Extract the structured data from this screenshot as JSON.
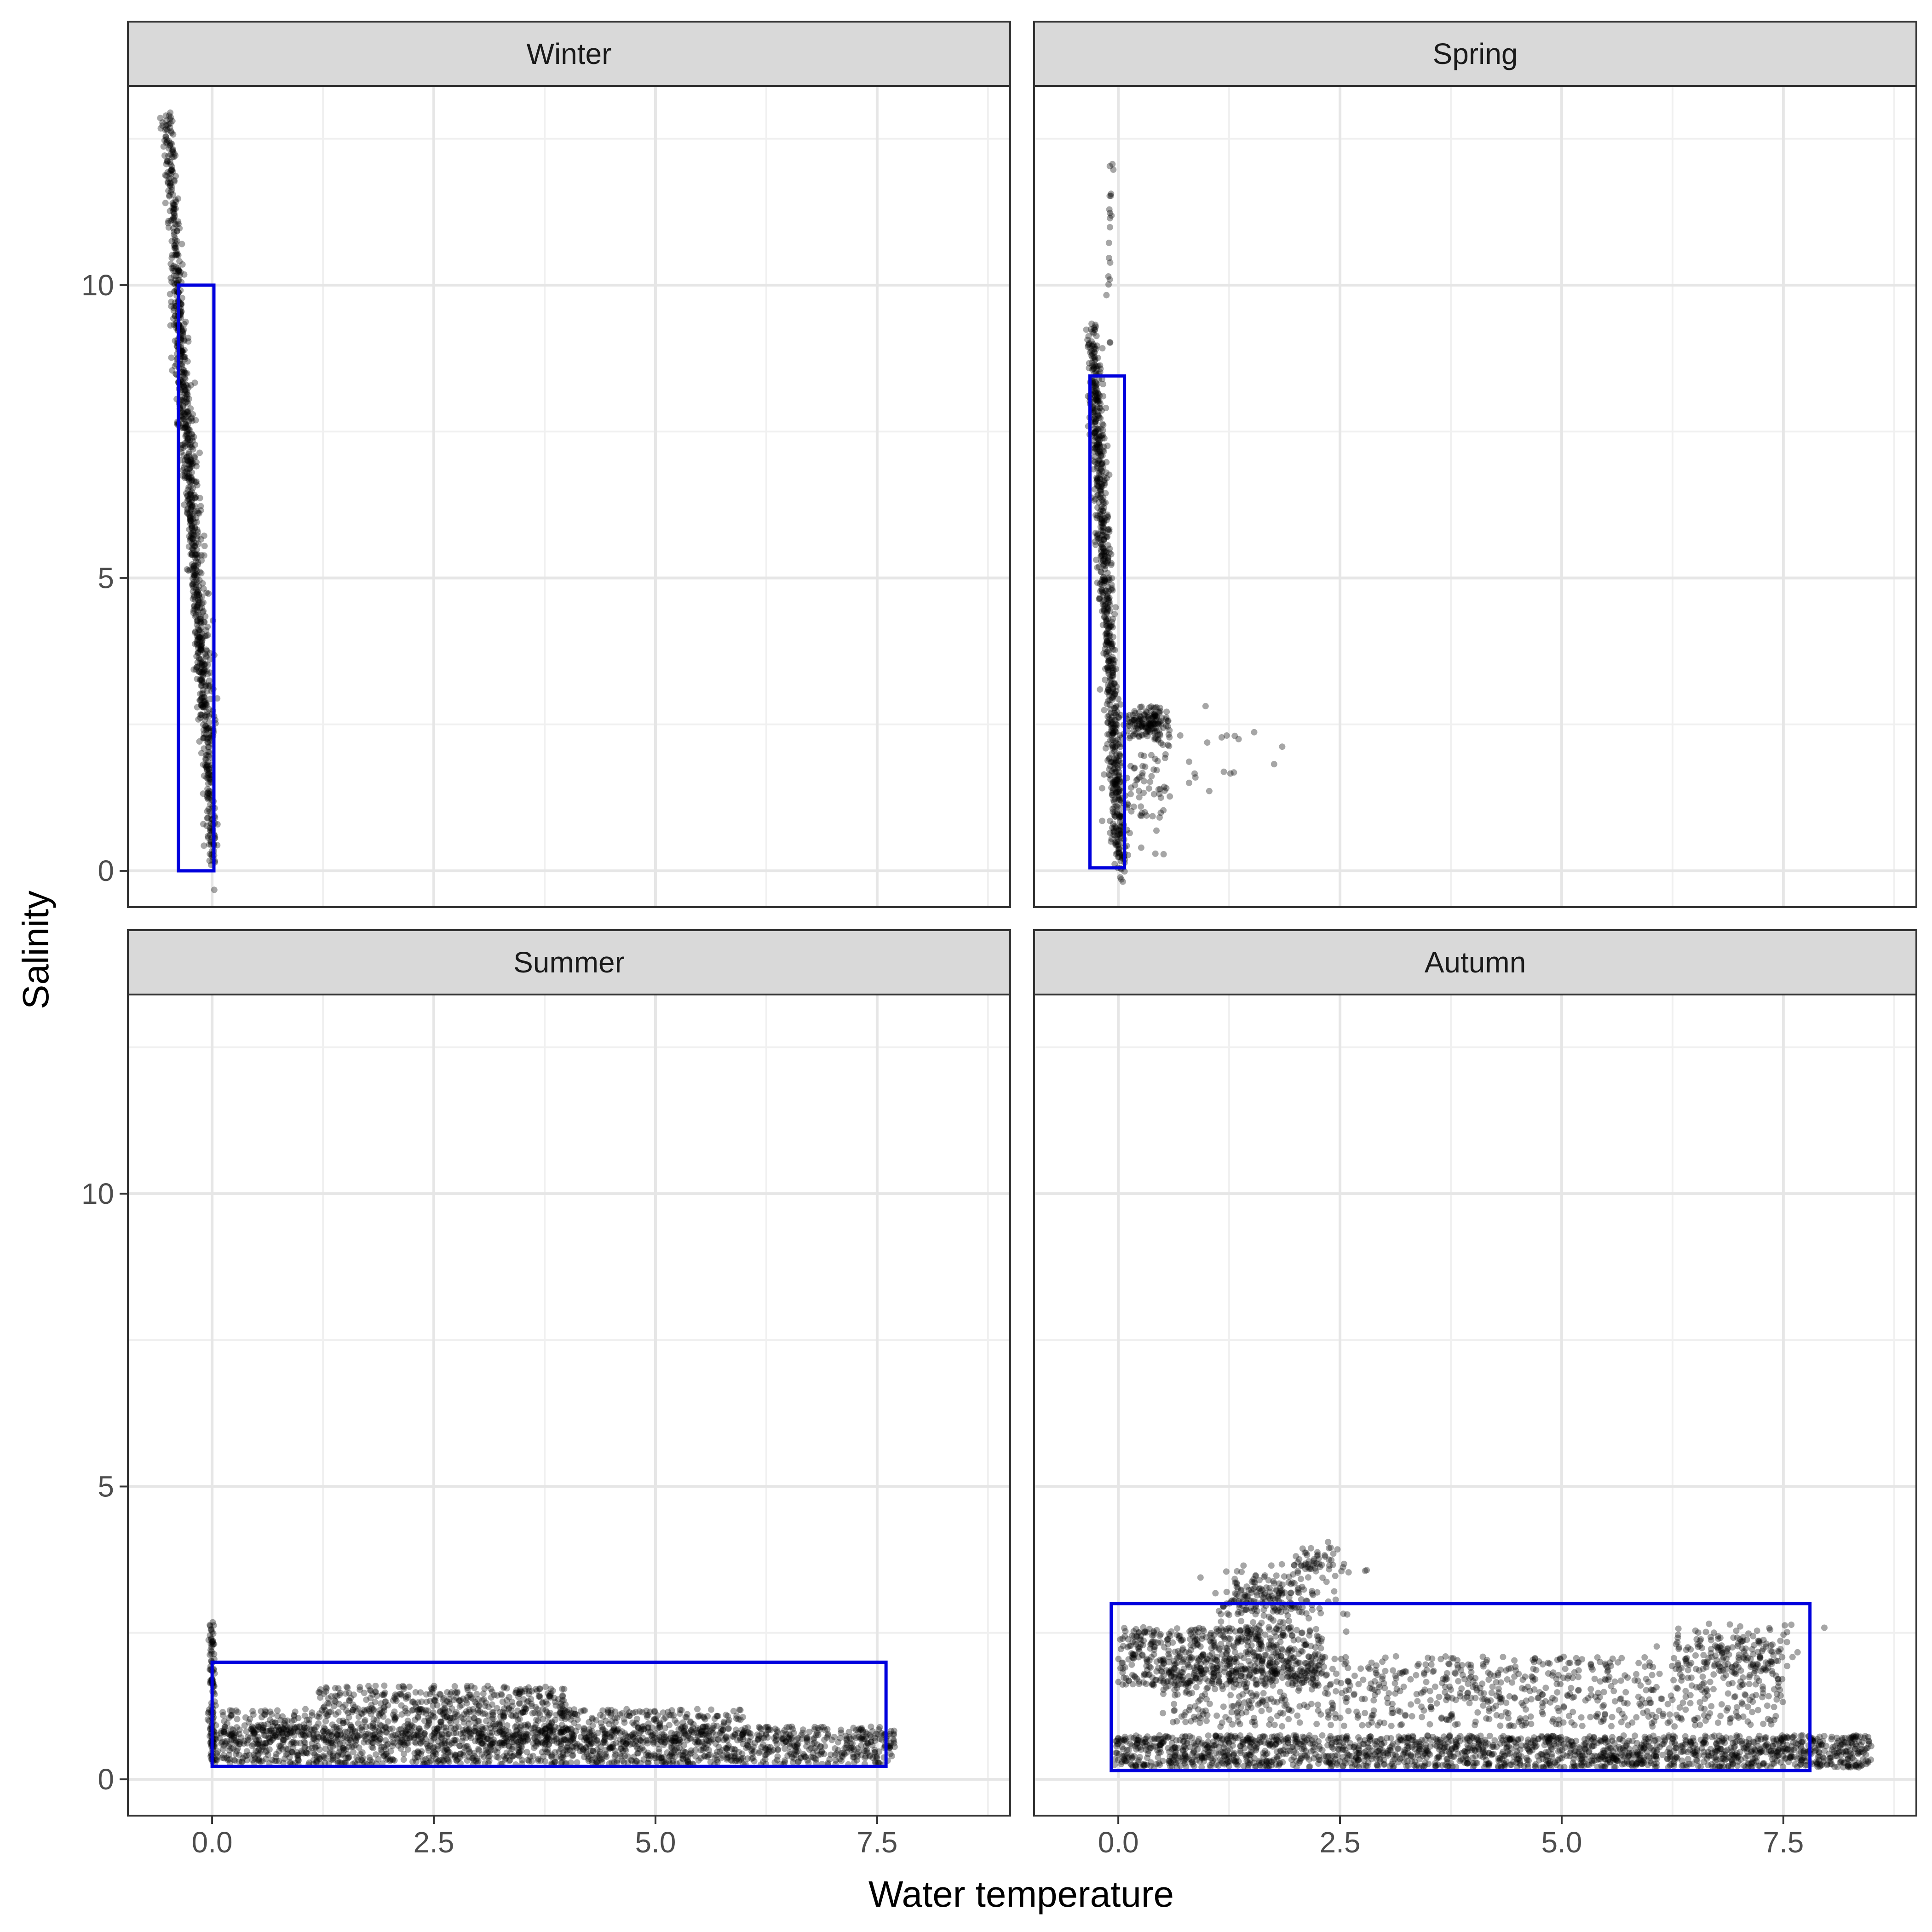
{
  "chart_data": {
    "type": "scatter",
    "xlabel": "Water temperature",
    "ylabel": "Salinity",
    "xlim": [
      -0.95,
      9.0
    ],
    "ylim": [
      -0.62,
      13.4
    ],
    "x_ticks": [
      0.0,
      2.5,
      5.0,
      7.5
    ],
    "x_tick_labels": [
      "0.0",
      "2.5",
      "5.0",
      "7.5"
    ],
    "y_ticks": [
      0,
      5,
      10
    ],
    "y_tick_labels": [
      "0",
      "5",
      "10"
    ],
    "grid": true,
    "legend": "none",
    "point_color": "#000000",
    "box_color": "#0000dd",
    "panels": [
      {
        "strip": "Winter",
        "box": {
          "xmin": -0.38,
          "xmax": 0.02,
          "ymin": 0.0,
          "ymax": 10.0
        },
        "clusters": [
          {
            "kind": "line",
            "x0": -0.5,
            "y0": 12.8,
            "x1": 0.02,
            "y1": 0.05,
            "spread_x": 0.03,
            "spread_y": 0.15,
            "n": 700
          },
          {
            "kind": "line",
            "x0": -0.42,
            "y0": 10.0,
            "x1": 0.0,
            "y1": 2.0,
            "spread_x": 0.05,
            "spread_y": 0.3,
            "n": 300
          }
        ]
      },
      {
        "strip": "Spring",
        "box": {
          "xmin": -0.32,
          "xmax": 0.07,
          "ymin": 0.05,
          "ymax": 8.45
        },
        "clusters": [
          {
            "kind": "line",
            "x0": -0.3,
            "y0": 9.3,
            "x1": 0.03,
            "y1": 0.05,
            "spread_x": 0.04,
            "spread_y": 0.15,
            "n": 800
          },
          {
            "kind": "blob",
            "cx": 0.35,
            "cy": 2.5,
            "sx": 0.15,
            "sy": 0.15,
            "n": 150
          },
          {
            "kind": "blob",
            "cx": 0.3,
            "cy": 1.5,
            "sx": 0.18,
            "sy": 0.5,
            "n": 80
          },
          {
            "kind": "blob",
            "cx": -0.1,
            "cy": 10.5,
            "sx": 0.02,
            "sy": 1.0,
            "n": 20
          },
          {
            "kind": "blob",
            "cx": 1.2,
            "cy": 2.2,
            "sx": 0.25,
            "sy": 0.5,
            "n": 15
          }
        ]
      },
      {
        "strip": "Summer",
        "box": {
          "xmin": 0.0,
          "xmax": 7.6,
          "ymin": 0.22,
          "ymax": 2.0
        },
        "clusters": [
          {
            "kind": "band",
            "x0": 0.0,
            "x1": 7.7,
            "ymin": 0.25,
            "ymax": 0.9,
            "n": 1500
          },
          {
            "kind": "band",
            "x0": 0.1,
            "x1": 6.0,
            "ymin": 0.6,
            "ymax": 1.2,
            "n": 700
          },
          {
            "kind": "band",
            "x0": 1.2,
            "x1": 4.0,
            "ymin": 1.1,
            "ymax": 1.6,
            "n": 300
          },
          {
            "kind": "line",
            "x0": 0.0,
            "y0": 0.3,
            "x1": 0.0,
            "y1": 2.7,
            "spread_x": 0.02,
            "spread_y": 0.05,
            "n": 120
          }
        ]
      },
      {
        "strip": "Autumn",
        "box": {
          "xmin": -0.08,
          "xmax": 7.8,
          "ymin": 0.15,
          "ymax": 3.0
        },
        "clusters": [
          {
            "kind": "band",
            "x0": -0.05,
            "x1": 8.5,
            "ymin": 0.2,
            "ymax": 0.75,
            "n": 1800
          },
          {
            "kind": "band",
            "x0": 0.0,
            "x1": 2.3,
            "ymin": 1.6,
            "ymax": 2.6,
            "n": 600
          },
          {
            "kind": "band",
            "x0": 0.5,
            "x1": 7.5,
            "ymin": 0.9,
            "ymax": 2.1,
            "n": 900
          },
          {
            "kind": "blob",
            "cx": 1.7,
            "cy": 3.1,
            "sx": 0.3,
            "sy": 0.25,
            "n": 200
          },
          {
            "kind": "blob",
            "cx": 7.0,
            "cy": 2.2,
            "sx": 0.35,
            "sy": 0.2,
            "n": 150
          },
          {
            "kind": "blob",
            "cx": 2.2,
            "cy": 3.7,
            "sx": 0.2,
            "sy": 0.15,
            "n": 60
          }
        ]
      }
    ]
  }
}
